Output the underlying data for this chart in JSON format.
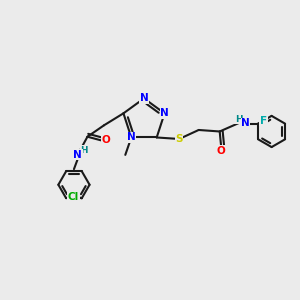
{
  "background_color": "#ebebeb",
  "bg_rgb": [
    0.922,
    0.922,
    0.922
  ],
  "bond_color": "#1a1a1a",
  "bond_lw": 1.5,
  "atom_colors": {
    "N": "#0000ff",
    "S": "#cccc00",
    "O": "#ff0000",
    "F": "#00aaaa",
    "Cl": "#00aa00",
    "H_label": "#008888",
    "C": "#1a1a1a"
  },
  "font_size": 7.5,
  "title": ""
}
